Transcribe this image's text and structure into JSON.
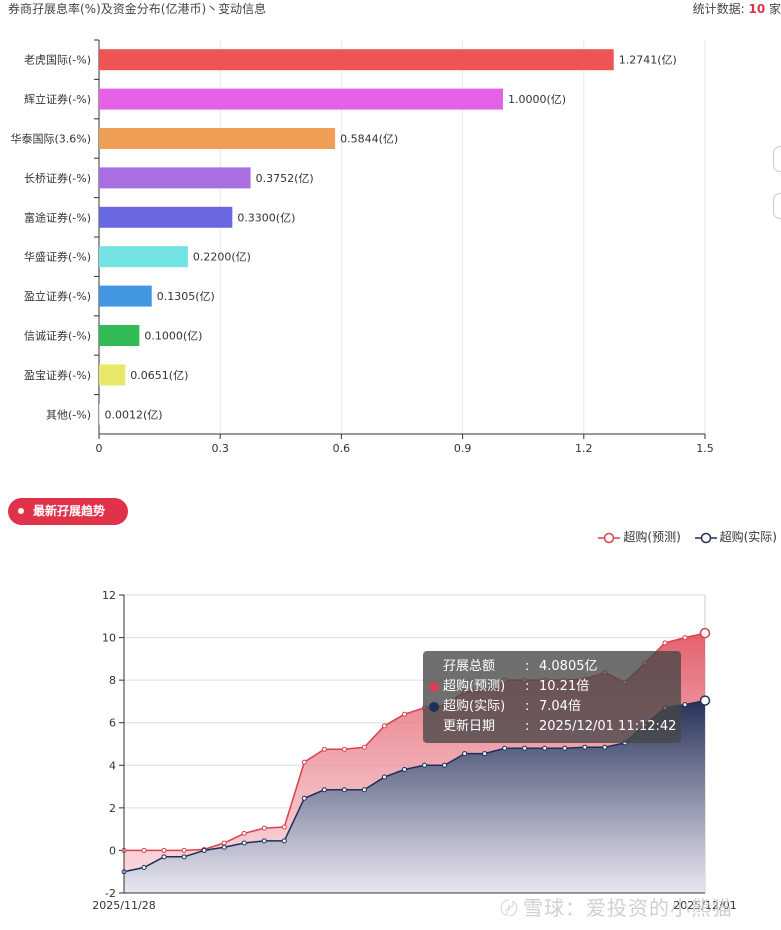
{
  "header": {
    "title": "券商孖展息率(%)及资金分布(亿港币)丶变动信息",
    "stat_prefix": "统计数据: ",
    "stat_count": "10",
    "stat_suffix": " 家"
  },
  "section": {
    "badge_label": "最新孖展趋势"
  },
  "legend": [
    {
      "name": "超购(预测)",
      "color": "#d9414f"
    },
    {
      "name": "超购(实际)",
      "color": "#1e2f5c"
    }
  ],
  "tooltip": {
    "rows": [
      {
        "key": "孖展总额",
        "sep": ":",
        "value": "4.0805亿",
        "dot": ""
      },
      {
        "key": "超购(预测)",
        "sep": ":",
        "value": "10.21倍",
        "dot": "#d9414f"
      },
      {
        "key": "超购(实际)",
        "sep": ":",
        "value": "7.04倍",
        "dot": "#1e2f5c"
      },
      {
        "key": "更新日期",
        "sep": ":",
        "value": "2025/12/01 11:12:42",
        "dot": ""
      }
    ]
  },
  "watermark": {
    "icon": "〄",
    "text": "雪球：爱投资的小熊猫"
  },
  "chart_data": [
    {
      "type": "bar",
      "orientation": "horizontal",
      "categories": [
        "老虎国际(-%)",
        "辉立证券(-%)",
        "华泰国际(3.6%)",
        "长桥证券(-%)",
        "富途证券(-%)",
        "华盛证券(-%)",
        "盈立证券(-%)",
        "信诚证券(-%)",
        "盈宝证券(-%)",
        "其他(-%)"
      ],
      "values": [
        1.2741,
        1.0,
        0.5844,
        0.3752,
        0.33,
        0.22,
        0.1305,
        0.1,
        0.0651,
        0.0012
      ],
      "data_labels": [
        "1.2741(亿)",
        "1.0000(亿)",
        "0.5844(亿)",
        "0.3752(亿)",
        "0.3300(亿)",
        "0.2200(亿)",
        "0.1305(亿)",
        "0.1000(亿)",
        "0.0651(亿)",
        "0.0012(亿)"
      ],
      "colors": [
        "#ee5454",
        "#e462e6",
        "#ef9f55",
        "#a86ee2",
        "#6a68e1",
        "#72e2e2",
        "#4396e2",
        "#32bb55",
        "#e7e76a",
        "#cccccc"
      ],
      "xlim": [
        0,
        1.5
      ],
      "xticks": [
        "0",
        "0.3",
        "0.6",
        "0.9",
        "1.2",
        "1.5"
      ],
      "grid": true
    },
    {
      "type": "area",
      "x_start_label": "2025/11/28",
      "x_end_label": "2025/12/01",
      "ylim": [
        -2,
        12
      ],
      "yticks": [
        "-2",
        "0",
        "2",
        "4",
        "6",
        "8",
        "10",
        "12"
      ],
      "grid": true,
      "series": [
        {
          "name": "超购(预测)",
          "color": "#d9414f",
          "values": [
            0.0,
            0.0,
            0.0,
            0.0,
            0.05,
            0.35,
            0.8,
            1.05,
            1.1,
            4.15,
            4.75,
            4.75,
            4.85,
            5.85,
            6.4,
            6.7,
            6.8,
            7.45,
            7.5,
            8.0,
            8.0,
            8.0,
            8.0,
            8.05,
            8.35,
            7.9,
            8.8,
            9.75,
            10.0,
            10.21
          ]
        },
        {
          "name": "超购(实际)",
          "color": "#1e2f5c",
          "values": [
            -1.0,
            -0.8,
            -0.3,
            -0.3,
            0.0,
            0.15,
            0.35,
            0.45,
            0.45,
            2.45,
            2.85,
            2.85,
            2.85,
            3.45,
            3.8,
            4.0,
            4.0,
            4.55,
            4.55,
            4.8,
            4.8,
            4.8,
            4.8,
            4.85,
            4.85,
            5.05,
            5.9,
            6.7,
            6.85,
            7.04
          ]
        }
      ]
    }
  ]
}
